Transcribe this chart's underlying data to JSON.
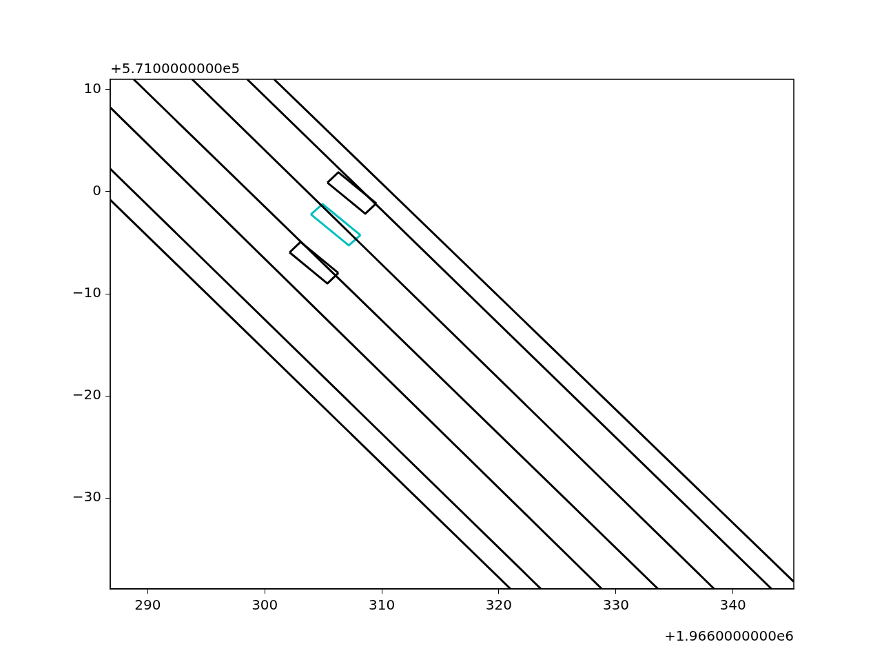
{
  "chart_data": {
    "type": "line",
    "xlim": [
      286.8,
      345.2
    ],
    "ylim": [
      -38.9,
      11.0
    ],
    "xticks": [
      290,
      300,
      310,
      320,
      330,
      340
    ],
    "yticks": [
      -30,
      -20,
      -10,
      0,
      10
    ],
    "annotations": [
      "+5.7100000000e5",
      "+1.9660000000e6"
    ],
    "series": [
      {
        "color": "#000000",
        "x": [
          286.8,
          321.0
        ],
        "values": [
          -0.81,
          -38.9
        ]
      },
      {
        "color": "#000000",
        "x": [
          286.8,
          323.6
        ],
        "values": [
          2.23,
          -38.9
        ]
      },
      {
        "color": "#000000",
        "x": [
          286.8,
          328.8
        ],
        "values": [
          8.24,
          -38.9
        ]
      },
      {
        "color": "#000000",
        "x": [
          288.8,
          333.6
        ],
        "values": [
          11.0,
          -38.9
        ]
      },
      {
        "color": "#000000",
        "x": [
          293.8,
          338.4
        ],
        "values": [
          11.0,
          -38.9
        ]
      },
      {
        "color": "#000000",
        "x": [
          298.5,
          343.3
        ],
        "values": [
          11.0,
          -38.9
        ]
      },
      {
        "color": "#000000",
        "x": [
          300.8,
          345.2
        ],
        "values": [
          11.0,
          -38.2
        ]
      },
      {
        "color": "#000000",
        "x": [
          305.35,
          306.29,
          309.53
        ],
        "values": [
          0.88,
          1.89,
          -1.15
        ]
      },
      {
        "color": "#000000",
        "x": [
          305.35,
          308.59,
          309.53
        ],
        "values": [
          0.88,
          -2.16,
          -1.15
        ]
      },
      {
        "color": "#00bfbf",
        "x": [
          303.94,
          304.94,
          308.18
        ],
        "values": [
          -2.23,
          -1.22,
          -4.26
        ]
      },
      {
        "color": "#00bfbf",
        "x": [
          303.94,
          307.18,
          308.18
        ],
        "values": [
          -2.23,
          -5.27,
          -4.26
        ]
      },
      {
        "color": "#000000",
        "x": [
          302.12,
          303.06,
          306.29
        ],
        "values": [
          -5.95,
          -4.93,
          -7.97
        ]
      },
      {
        "color": "#000000",
        "x": [
          302.12,
          305.35,
          306.29
        ],
        "values": [
          -5.95,
          -8.99,
          -7.97
        ]
      }
    ]
  }
}
